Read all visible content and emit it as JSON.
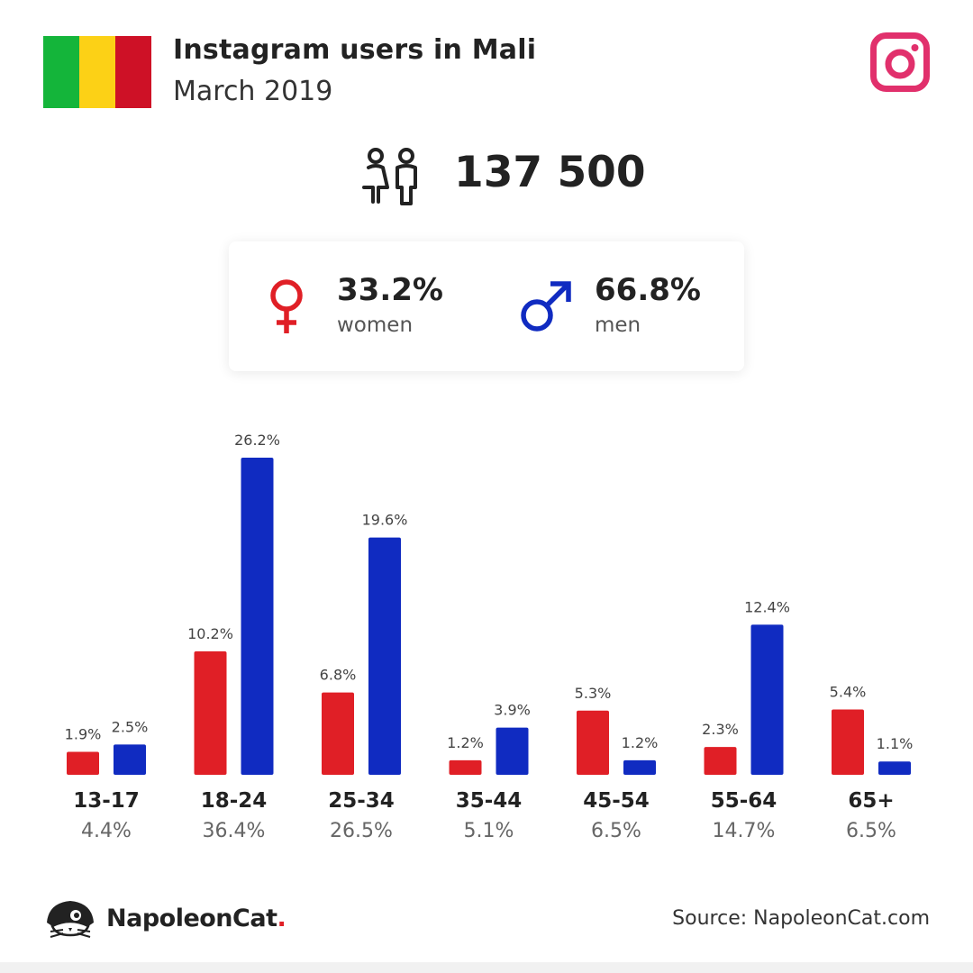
{
  "header": {
    "title": "Instagram users in Mali",
    "subtitle": "March 2019",
    "flag_colors": [
      "#14b53a",
      "#fcd116",
      "#ce1126"
    ],
    "social_icon": "instagram-icon"
  },
  "total_users": "137 500",
  "gender": {
    "women": {
      "percent": "33.2%",
      "label": "women",
      "icon": "female-symbol-icon",
      "color": "#e01f26"
    },
    "men": {
      "percent": "66.8%",
      "label": "men",
      "icon": "male-symbol-icon",
      "color": "#102bc1"
    }
  },
  "chart_data": {
    "type": "bar",
    "categories": [
      "13-17",
      "18-24",
      "25-34",
      "35-44",
      "45-54",
      "55-64",
      "65+"
    ],
    "category_totals": [
      "4.4%",
      "36.4%",
      "26.5%",
      "5.1%",
      "6.5%",
      "14.7%",
      "6.5%"
    ],
    "series": [
      {
        "values": [
          1.9,
          10.2,
          6.8,
          1.2,
          5.3,
          2.3,
          5.4
        ],
        "labels": [
          "1.9%",
          "10.2%",
          "6.8%",
          "1.2%",
          "5.3%",
          "2.3%",
          "5.4%"
        ],
        "color": "#e01f26"
      },
      {
        "values": [
          2.5,
          26.2,
          19.6,
          3.9,
          1.2,
          12.4,
          1.1
        ],
        "labels": [
          "2.5%",
          "26.2%",
          "19.6%",
          "3.9%",
          "1.2%",
          "12.4%",
          "1.1%"
        ],
        "color": "#102bc1"
      }
    ],
    "ylim": [
      0,
      26.2
    ],
    "grid": false
  },
  "footer": {
    "brand": "NapoleonCat",
    "brand_dot": ".",
    "source": "Source: NapoleonCat.com"
  }
}
